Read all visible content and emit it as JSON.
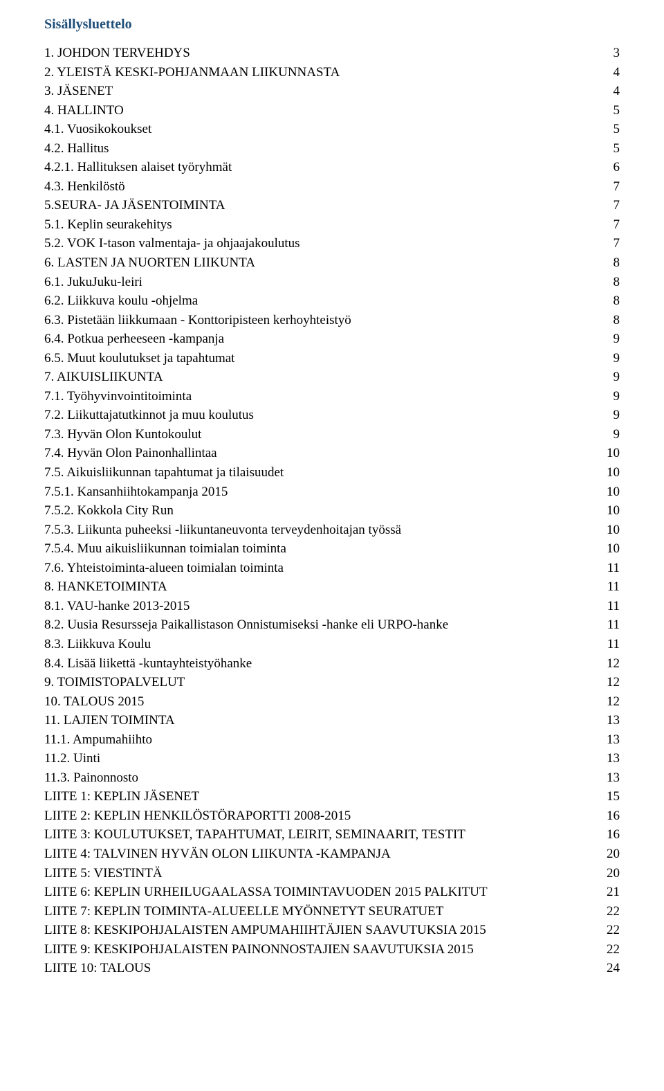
{
  "title": "Sisällysluettelo",
  "title_color": "#1f4e79",
  "font_family": "Times New Roman",
  "entries": [
    {
      "text": "1. JOHDON TERVEHDYS",
      "page": "3"
    },
    {
      "text": "2. YLEISTÄ KESKI-POHJANMAAN LIIKUNNASTA",
      "page": "4"
    },
    {
      "text": "3. JÄSENET",
      "page": "4"
    },
    {
      "text": "4. HALLINTO",
      "page": "5"
    },
    {
      "text": "4.1. Vuosikokoukset",
      "page": "5"
    },
    {
      "text": "4.2. Hallitus",
      "page": "5"
    },
    {
      "text": "4.2.1. Hallituksen alaiset työryhmät",
      "page": "6"
    },
    {
      "text": "4.3. Henkilöstö",
      "page": "7"
    },
    {
      "text": "5.SEURA- JA JÄSENTOIMINTA",
      "page": "7"
    },
    {
      "text": "5.1. Keplin seurakehitys",
      "page": "7"
    },
    {
      "text": "5.2. VOK I-tason valmentaja- ja ohjaajakoulutus",
      "page": "7"
    },
    {
      "text": "6. LASTEN JA NUORTEN LIIKUNTA",
      "page": "8"
    },
    {
      "text": "6.1. JukuJuku-leiri",
      "page": "8"
    },
    {
      "text": "6.2. Liikkuva koulu -ohjelma",
      "page": "8"
    },
    {
      "text": "6.3. Pistetään liikkumaan - Konttoripisteen kerhoyhteistyö",
      "page": "8"
    },
    {
      "text": "6.4. Potkua perheeseen -kampanja",
      "page": "9"
    },
    {
      "text": "6.5. Muut koulutukset ja tapahtumat",
      "page": "9"
    },
    {
      "text": "7. AIKUISLIIKUNTA",
      "page": "9"
    },
    {
      "text": "7.1. Työhyvinvointitoiminta",
      "page": "9"
    },
    {
      "text": "7.2. Liikuttajatutkinnot ja muu koulutus",
      "page": "9"
    },
    {
      "text": "7.3. Hyvän Olon Kuntokoulut",
      "page": "9"
    },
    {
      "text": "7.4. Hyvän Olon Painonhallintaa",
      "page": "10"
    },
    {
      "text": "7.5. Aikuisliikunnan tapahtumat ja tilaisuudet",
      "page": "10"
    },
    {
      "text": "7.5.1. Kansanhiihtokampanja 2015",
      "page": "10"
    },
    {
      "text": "7.5.2. Kokkola City Run",
      "page": "10"
    },
    {
      "text": "7.5.3. Liikunta puheeksi -liikuntaneuvonta terveydenhoitajan työssä",
      "page": "10"
    },
    {
      "text": "7.5.4. Muu aikuisliikunnan toimialan toiminta",
      "page": "10"
    },
    {
      "text": "7.6. Yhteistoiminta-alueen toimialan toiminta",
      "page": "11"
    },
    {
      "text": "8. HANKETOIMINTA",
      "page": "11"
    },
    {
      "text": "8.1. VAU-hanke 2013-2015",
      "page": "11"
    },
    {
      "text": "8.2. Uusia Resursseja Paikallistason Onnistumiseksi -hanke eli URPO-hanke",
      "page": "11"
    },
    {
      "text": "8.3. Liikkuva Koulu",
      "page": "11"
    },
    {
      "text": "8.4. Lisää liikettä -kuntayhteistyöhanke",
      "page": "12"
    },
    {
      "text": "9. TOIMISTOPALVELUT",
      "page": "12"
    },
    {
      "text": "10. TALOUS 2015",
      "page": "12"
    },
    {
      "text": "11.  LAJIEN TOIMINTA",
      "page": "13"
    },
    {
      "text": "11.1. Ampumahiihto",
      "page": "13"
    },
    {
      "text": "11.2. Uinti",
      "page": "13"
    },
    {
      "text": "11.3. Painonnosto",
      "page": "13"
    },
    {
      "text": "LIITE 1: KEPLIN JÄSENET",
      "page": "15"
    },
    {
      "text": "LIITE 2:  KEPLIN HENKILÖSTÖRAPORTTI  2008-2015",
      "page": "16"
    },
    {
      "text": "LIITE 3: KOULUTUKSET, TAPAHTUMAT, LEIRIT, SEMINAARIT, TESTIT",
      "page": "16"
    },
    {
      "text": "LIITE 4: TALVINEN HYVÄN OLON LIIKUNTA -KAMPANJA",
      "page": "20"
    },
    {
      "text": "LIITE 5: VIESTINTÄ",
      "page": "20"
    },
    {
      "text": "LIITE 6: KEPLIN URHEILUGAALASSA TOIMINTAVUODEN 2015 PALKITUT",
      "page": "21"
    },
    {
      "text": "LIITE 7: KEPLIN TOIMINTA-ALUEELLE MYÖNNETYT SEURATUET",
      "page": "22"
    },
    {
      "text": "LIITE 8: KESKIPOHJALAISTEN AMPUMAHIIHTÄJIEN SAAVUTUKSIA 2015",
      "page": "22"
    },
    {
      "text": "LIITE 9: KESKIPOHJALAISTEN PAINONNOSTAJIEN SAAVUTUKSIA 2015",
      "page": "22"
    },
    {
      "text": "LIITE 10: TALOUS",
      "page": "24"
    }
  ]
}
